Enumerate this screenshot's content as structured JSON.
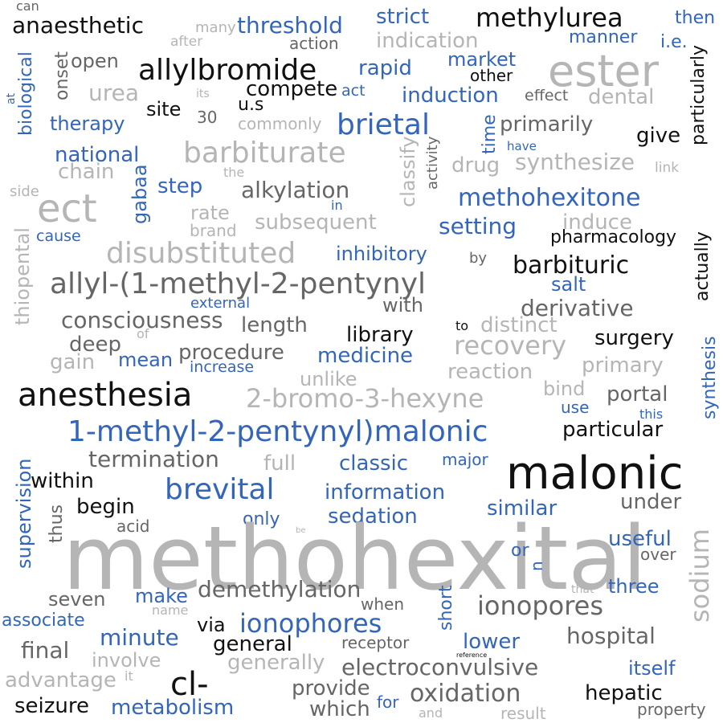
{
  "palette": {
    "black": "#111111",
    "dark_gray": "#666666",
    "light_gray": "#b5b5b5",
    "blue": "#3366bb",
    "background": "#ffffff"
  },
  "words": [
    {
      "text": "can",
      "color": "dgray"
    },
    {
      "text": "anaesthetic",
      "color": "black"
    },
    {
      "text": "many",
      "color": "lgray"
    },
    {
      "text": "threshold",
      "color": "blue"
    },
    {
      "text": "strict",
      "color": "blue"
    },
    {
      "text": "methylurea",
      "color": "black"
    },
    {
      "text": "then",
      "color": "blue"
    },
    {
      "text": "after",
      "color": "lgray"
    },
    {
      "text": "action",
      "color": "dgray"
    },
    {
      "text": "indication",
      "color": "lgray"
    },
    {
      "text": "manner",
      "color": "blue"
    },
    {
      "text": "i.e.",
      "color": "blue"
    },
    {
      "text": "ester",
      "color": "lgray"
    },
    {
      "text": "open",
      "color": "dgray"
    },
    {
      "text": "allylbromide",
      "color": "black"
    },
    {
      "text": "rapid",
      "color": "blue"
    },
    {
      "text": "market",
      "color": "blue"
    },
    {
      "text": "other",
      "color": "black"
    },
    {
      "text": "particularly",
      "color": "black"
    },
    {
      "text": "onset",
      "color": "dgray"
    },
    {
      "text": "urea",
      "color": "lgray"
    },
    {
      "text": "its",
      "color": "lgray"
    },
    {
      "text": "compete",
      "color": "black"
    },
    {
      "text": "act",
      "color": "blue"
    },
    {
      "text": "induction",
      "color": "blue"
    },
    {
      "text": "effect",
      "color": "dgray"
    },
    {
      "text": "dental",
      "color": "lgray"
    },
    {
      "text": "at",
      "color": "blue"
    },
    {
      "text": "biological",
      "color": "blue"
    },
    {
      "text": "site",
      "color": "black"
    },
    {
      "text": "30",
      "color": "dgray"
    },
    {
      "text": "u.s",
      "color": "black"
    },
    {
      "text": "therapy",
      "color": "blue"
    },
    {
      "text": "commonly",
      "color": "lgray"
    },
    {
      "text": "brietal",
      "color": "blue"
    },
    {
      "text": "time",
      "color": "blue"
    },
    {
      "text": "primarily",
      "color": "dgray"
    },
    {
      "text": "give",
      "color": "black"
    },
    {
      "text": "national",
      "color": "blue"
    },
    {
      "text": "barbiturate",
      "color": "lgray"
    },
    {
      "text": "classify",
      "color": "lgray"
    },
    {
      "text": "activity",
      "color": "dgray"
    },
    {
      "text": "have",
      "color": "blue"
    },
    {
      "text": "drug",
      "color": "lgray"
    },
    {
      "text": "synthesize",
      "color": "lgray"
    },
    {
      "text": "link",
      "color": "lgray"
    },
    {
      "text": "chain",
      "color": "lgray"
    },
    {
      "text": "the",
      "color": "lgray"
    },
    {
      "text": "step",
      "color": "blue"
    },
    {
      "text": "gabaa",
      "color": "blue"
    },
    {
      "text": "alkylation",
      "color": "dgray"
    },
    {
      "text": "side",
      "color": "lgray"
    },
    {
      "text": "ect",
      "color": "lgray"
    },
    {
      "text": "in",
      "color": "blue"
    },
    {
      "text": "methohexitone",
      "color": "blue"
    },
    {
      "text": "rate",
      "color": "lgray"
    },
    {
      "text": "induce",
      "color": "lgray"
    },
    {
      "text": "subsequent",
      "color": "lgray"
    },
    {
      "text": "brand",
      "color": "lgray"
    },
    {
      "text": "setting",
      "color": "blue"
    },
    {
      "text": "pharmacology",
      "color": "black"
    },
    {
      "text": "cause",
      "color": "blue"
    },
    {
      "text": "thiopental",
      "color": "lgray"
    },
    {
      "text": "disubstituted",
      "color": "lgray"
    },
    {
      "text": "inhibitory",
      "color": "blue"
    },
    {
      "text": "by",
      "color": "dgray"
    },
    {
      "text": "barbituric",
      "color": "black"
    },
    {
      "text": "salt",
      "color": "blue"
    },
    {
      "text": "allyl-(1-methyl-2-pentynyl",
      "color": "dgray"
    },
    {
      "text": "external",
      "color": "blue"
    },
    {
      "text": "with",
      "color": "dgray"
    },
    {
      "text": "derivative",
      "color": "dgray"
    },
    {
      "text": "actually",
      "color": "black"
    },
    {
      "text": "consciousness",
      "color": "dgray"
    },
    {
      "text": "length",
      "color": "dgray"
    },
    {
      "text": "of",
      "color": "lgray"
    },
    {
      "text": "to",
      "color": "black"
    },
    {
      "text": "distinct",
      "color": "lgray"
    },
    {
      "text": "library",
      "color": "black"
    },
    {
      "text": "surgery",
      "color": "black"
    },
    {
      "text": "deep",
      "color": "dgray"
    },
    {
      "text": "recovery",
      "color": "lgray"
    },
    {
      "text": "procedure",
      "color": "dgray"
    },
    {
      "text": "medicine",
      "color": "blue"
    },
    {
      "text": "gain",
      "color": "lgray"
    },
    {
      "text": "mean",
      "color": "blue"
    },
    {
      "text": "increase",
      "color": "blue"
    },
    {
      "text": "primary",
      "color": "lgray"
    },
    {
      "text": "synthesis",
      "color": "blue"
    },
    {
      "text": "unlike",
      "color": "lgray"
    },
    {
      "text": "reaction",
      "color": "lgray"
    },
    {
      "text": "anesthesia",
      "color": "black"
    },
    {
      "text": "2-bromo-3-hexyne",
      "color": "lgray"
    },
    {
      "text": "bind",
      "color": "lgray"
    },
    {
      "text": "portal",
      "color": "dgray"
    },
    {
      "text": "use",
      "color": "blue"
    },
    {
      "text": "this",
      "color": "blue"
    },
    {
      "text": "1-methyl-2-pentynyl)malonic",
      "color": "blue"
    },
    {
      "text": "particular",
      "color": "black"
    },
    {
      "text": "termination",
      "color": "dgray"
    },
    {
      "text": "full",
      "color": "lgray"
    },
    {
      "text": "classic",
      "color": "blue"
    },
    {
      "text": "major",
      "color": "blue"
    },
    {
      "text": "malonic",
      "color": "black"
    },
    {
      "text": "within",
      "color": "black"
    },
    {
      "text": "brevital",
      "color": "blue"
    },
    {
      "text": "information",
      "color": "blue"
    },
    {
      "text": "supervision",
      "color": "blue"
    },
    {
      "text": "begin",
      "color": "black"
    },
    {
      "text": "similar",
      "color": "blue"
    },
    {
      "text": "under",
      "color": "dgray"
    },
    {
      "text": "thus",
      "color": "dgray"
    },
    {
      "text": "acid",
      "color": "dgray"
    },
    {
      "text": "only",
      "color": "blue"
    },
    {
      "text": "sedation",
      "color": "blue"
    },
    {
      "text": "be",
      "color": "lgray"
    },
    {
      "text": "methohexital",
      "color": "lgray"
    },
    {
      "text": "sodium",
      "color": "lgray"
    },
    {
      "text": "useful",
      "color": "blue"
    },
    {
      "text": "or",
      "color": "blue"
    },
    {
      "text": "over",
      "color": "dgray"
    },
    {
      "text": "n",
      "color": "blue"
    },
    {
      "text": "demethylation",
      "color": "dgray"
    },
    {
      "text": "that",
      "color": "lgray"
    },
    {
      "text": "three",
      "color": "blue"
    },
    {
      "text": "seven",
      "color": "dgray"
    },
    {
      "text": "make",
      "color": "blue"
    },
    {
      "text": "name",
      "color": "lgray"
    },
    {
      "text": "when",
      "color": "dgray"
    },
    {
      "text": "ionopores",
      "color": "dgray"
    },
    {
      "text": "associate",
      "color": "blue"
    },
    {
      "text": "via",
      "color": "black"
    },
    {
      "text": "ionophores",
      "color": "blue"
    },
    {
      "text": "short",
      "color": "blue"
    },
    {
      "text": "minute",
      "color": "blue"
    },
    {
      "text": "hospital",
      "color": "dgray"
    },
    {
      "text": "final",
      "color": "dgray"
    },
    {
      "text": "general",
      "color": "black"
    },
    {
      "text": "receptor",
      "color": "dgray"
    },
    {
      "text": "lower",
      "color": "blue"
    },
    {
      "text": "involve",
      "color": "lgray"
    },
    {
      "text": "reference",
      "color": "black"
    },
    {
      "text": "generally",
      "color": "lgray"
    },
    {
      "text": "electroconvulsive",
      "color": "dgray"
    },
    {
      "text": "itself",
      "color": "blue"
    },
    {
      "text": "advantage",
      "color": "lgray"
    },
    {
      "text": "it",
      "color": "lgray"
    },
    {
      "text": "cl-",
      "color": "black"
    },
    {
      "text": "provide",
      "color": "dgray"
    },
    {
      "text": "hepatic",
      "color": "black"
    },
    {
      "text": "oxidation",
      "color": "dgray"
    },
    {
      "text": "seizure",
      "color": "black"
    },
    {
      "text": "metabolism",
      "color": "blue"
    },
    {
      "text": "which",
      "color": "dgray"
    },
    {
      "text": "for",
      "color": "blue"
    },
    {
      "text": "and",
      "color": "lgray"
    },
    {
      "text": "result",
      "color": "lgray"
    },
    {
      "text": "property",
      "color": "dgray"
    }
  ]
}
